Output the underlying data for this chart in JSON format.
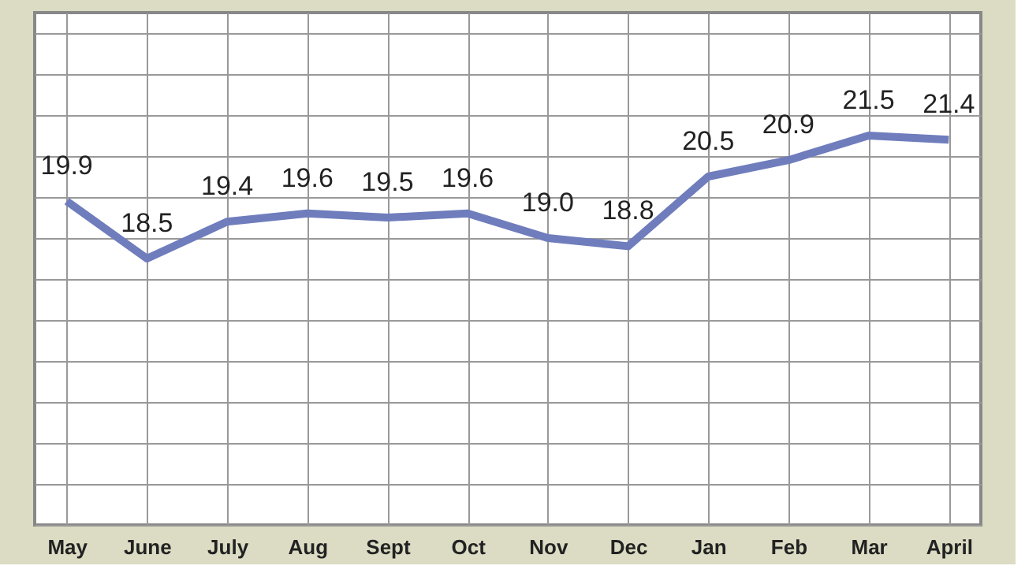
{
  "chart_data": {
    "type": "line",
    "categories": [
      "May",
      "June",
      "July",
      "Aug",
      "Sept",
      "Oct",
      "Nov",
      "Dec",
      "Jan",
      "Feb",
      "Mar",
      "April"
    ],
    "series": [
      {
        "color": "#6f7dbd",
        "values": [
          19.9,
          18.5,
          19.4,
          19.6,
          19.5,
          19.6,
          19.0,
          18.8,
          20.5,
          20.9,
          21.5,
          21.4
        ],
        "value_labels": [
          "19.9",
          "18.5",
          "19.4",
          "19.6",
          "19.5",
          "19.6",
          "19.0",
          "18.8",
          "20.5",
          "20.9",
          "21.5",
          "21.4"
        ]
      }
    ],
    "ylim": [
      12,
      24.5
    ],
    "tick_labels": "x",
    "grid": true,
    "marker": "none",
    "line_style": "solid"
  }
}
